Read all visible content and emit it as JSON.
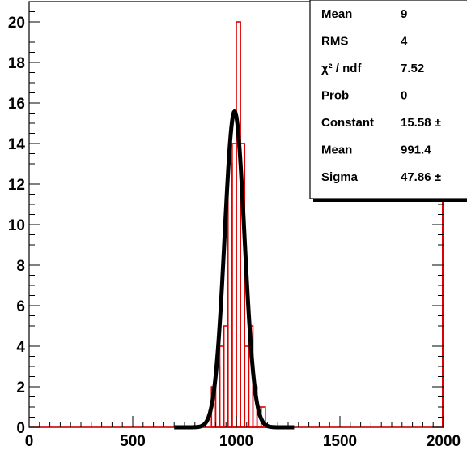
{
  "chart_data": {
    "type": "bar",
    "title": "",
    "xlabel": "",
    "ylabel": "",
    "xlim": [
      0,
      2000
    ],
    "ylim": [
      0,
      21
    ],
    "x_ticks": [
      0,
      500,
      1000,
      1500,
      2000
    ],
    "y_ticks": [
      0,
      2,
      4,
      6,
      8,
      10,
      12,
      14,
      16,
      18,
      20
    ],
    "grid": false,
    "histogram": {
      "bin_edges": [
        880,
        900,
        920,
        940,
        960,
        980,
        1000,
        1020,
        1040,
        1060,
        1080,
        1100,
        1120,
        1140
      ],
      "counts": [
        2,
        3,
        4,
        5,
        13,
        14,
        20,
        14,
        4,
        5,
        2,
        1,
        1
      ],
      "color": "#dd0000"
    },
    "fit": {
      "function": "gaus",
      "constant": 15.58,
      "mean": 991.4,
      "sigma": 47.86,
      "color": "#000000"
    },
    "stats_box": {
      "rows": [
        {
          "label": "Mean",
          "value": "9"
        },
        {
          "label": "RMS",
          "value": "4"
        },
        {
          "label": "χ² / ndf",
          "value": "7.52"
        },
        {
          "label": "Prob",
          "value": "0"
        },
        {
          "label": "Constant",
          "value": "15.58 ±"
        },
        {
          "label": "Mean",
          "value": "991.4"
        },
        {
          "label": "Sigma",
          "value": "47.86 ±"
        }
      ]
    }
  }
}
